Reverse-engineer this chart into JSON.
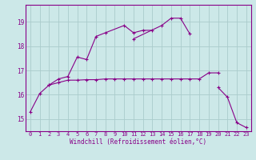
{
  "xlabel": "Windchill (Refroidissement éolien,°C)",
  "bg_color": "#cce8e8",
  "grid_color": "#aacccc",
  "line_color": "#880088",
  "xlim": [
    -0.5,
    23.5
  ],
  "ylim": [
    14.5,
    19.7
  ],
  "yticks": [
    15,
    16,
    17,
    18,
    19
  ],
  "xticks": [
    0,
    1,
    2,
    3,
    4,
    5,
    6,
    7,
    8,
    9,
    10,
    11,
    12,
    13,
    14,
    15,
    16,
    17,
    18,
    19,
    20,
    21,
    22,
    23
  ],
  "series": [
    [
      15.3,
      16.05,
      16.4,
      16.65,
      16.75,
      17.55,
      17.45,
      18.4,
      18.55,
      null,
      18.85,
      18.55,
      18.65,
      18.65,
      null,
      null,
      null,
      null,
      null,
      null,
      null,
      null,
      null,
      null
    ],
    [
      null,
      null,
      null,
      null,
      null,
      null,
      null,
      null,
      null,
      null,
      null,
      18.3,
      null,
      null,
      18.85,
      19.15,
      19.15,
      18.5,
      null,
      null,
      null,
      null,
      null,
      null
    ],
    [
      null,
      null,
      16.4,
      16.5,
      16.6,
      16.6,
      16.62,
      16.62,
      16.65,
      16.65,
      16.65,
      16.65,
      16.65,
      16.65,
      16.65,
      16.65,
      16.65,
      16.65,
      16.65,
      16.9,
      16.9,
      null,
      null,
      null
    ],
    [
      null,
      null,
      null,
      null,
      null,
      null,
      null,
      null,
      null,
      null,
      null,
      null,
      null,
      null,
      null,
      null,
      null,
      null,
      null,
      null,
      16.3,
      15.9,
      14.85,
      14.65
    ]
  ]
}
